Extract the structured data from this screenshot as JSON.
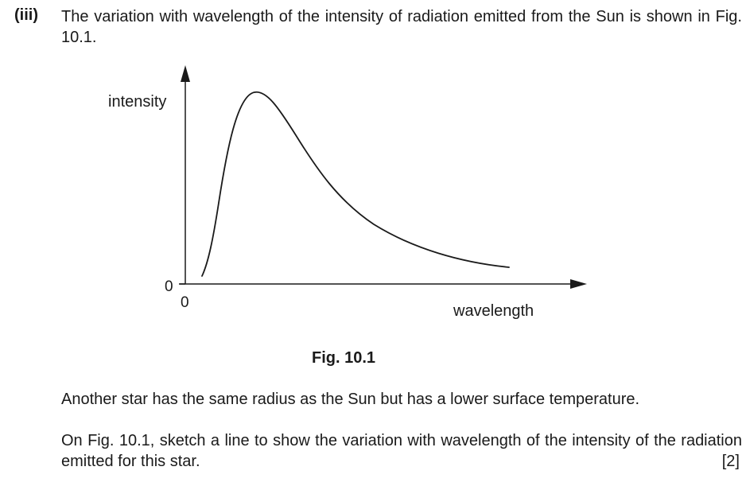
{
  "question": {
    "label": "(iii)",
    "stem": "The variation with wavelength of the intensity of radiation emitted from the Sun is shown in Fig. 10.1.",
    "other_star": "Another star has the same radius as the Sun but has a lower surface temperature.",
    "task": "On Fig. 10.1, sketch a line to show the variation with wavelength of the intensity of the radiation emitted for this star.",
    "marks": "[2]"
  },
  "figure": {
    "caption": "Fig. 10.1",
    "y_axis_label": "intensity",
    "x_axis_label": "wavelength",
    "y_origin_label": "0",
    "x_origin_label": "0",
    "curve": "Sun emission spectrum (intensity vs wavelength), rising sharply to a peak then decaying"
  },
  "colors": {
    "ink": "#1a1a1a",
    "background": "#ffffff"
  }
}
